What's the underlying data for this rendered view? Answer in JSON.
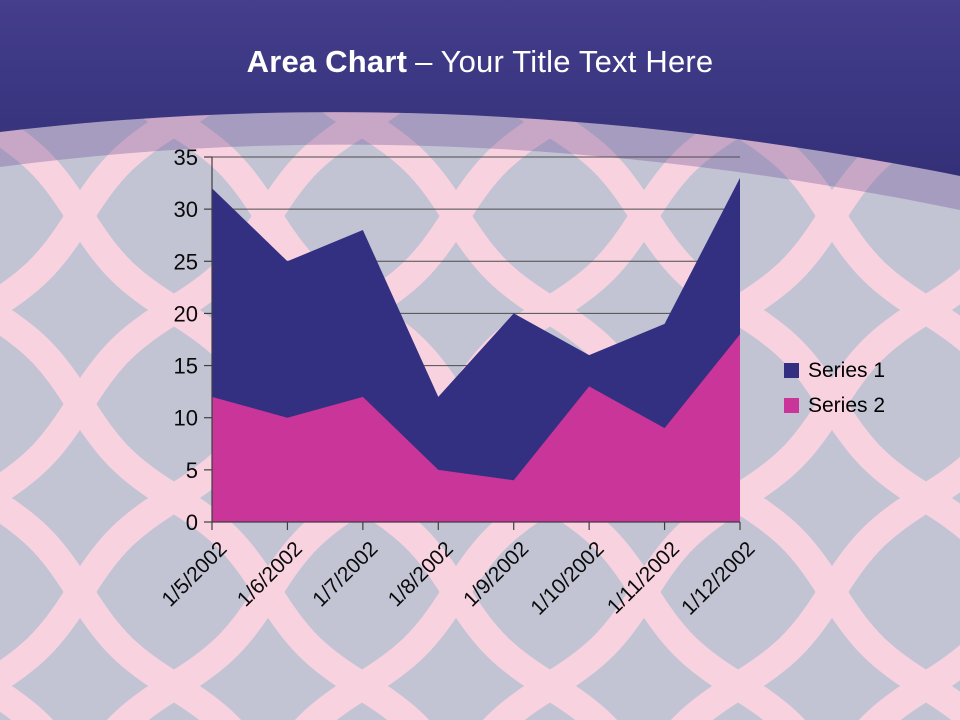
{
  "slide": {
    "title_bold": "Area Chart",
    "title_separator": "–",
    "title_rest": "Your Title Text Here"
  },
  "chart_data": {
    "type": "area",
    "stacked": false,
    "categories": [
      "1/5/2002",
      "1/6/2002",
      "1/7/2002",
      "1/8/2002",
      "1/9/2002",
      "1/10/2002",
      "1/11/2002",
      "1/12/2002"
    ],
    "series": [
      {
        "name": "Series 1",
        "color": "#333082",
        "values": [
          32,
          25,
          28,
          12,
          20,
          16,
          19,
          33
        ]
      },
      {
        "name": "Series 2",
        "color": "#C93598",
        "values": [
          12,
          10,
          12,
          5,
          4,
          13,
          9,
          18
        ]
      }
    ],
    "y_axis": {
      "min": 0,
      "max": 35,
      "step": 5,
      "tick_labels": [
        "0",
        "5",
        "10",
        "15",
        "20",
        "25",
        "30",
        "35"
      ]
    },
    "x_axis": {
      "label_rotation_deg": 45
    },
    "grid": true,
    "legend_position": "right"
  },
  "colors": {
    "series1": "#333082",
    "series2": "#C93598",
    "background_base": "#C2C3D3",
    "pattern_pink": "#F8D3DF",
    "header_gradient_top": "#443E8C",
    "header_gradient_bottom": "#343078",
    "gridline": "#4D4D4D",
    "axis": "#3F3F3F",
    "axis_text": "#0A0A0A",
    "title_text": "#FFFFFF"
  }
}
